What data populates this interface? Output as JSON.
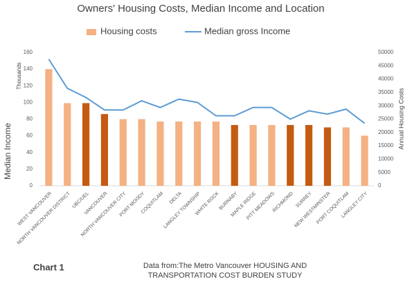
{
  "chart_data": {
    "type": "bar-line",
    "title": "Owners' Housing Costs, Median Income and Location",
    "y_label": "Median Income",
    "y_unit": "Thousands",
    "y2_label": "Annual Housing Costs",
    "caption": "Chart 1",
    "source": "Data from:The Metro Vancouver HOUSING AND TRANSPORTATION COST BURDEN STUDY",
    "categories": [
      "WEST VANCOUVER",
      "NORTH VANCOUVER DISTRICT",
      "UBC/UEL",
      "VANCOUVER",
      "NORTH VANCOUVER CITY",
      "PORT MOODY",
      "COQUITLAM",
      "DELTA",
      "LANGLEY TOWNSHIP",
      "WHITE ROCK",
      "BURNABY",
      "MAPLE RIDGE",
      "PITT MEADOWS",
      "RICHMOND",
      "SURREY",
      "NEW WESTMINSTER",
      "PORT COQUITLAM",
      "LANGLEY CITY"
    ],
    "series": [
      {
        "name": "Housing costs",
        "type": "bar",
        "axis": "y2",
        "color": "#f4b183",
        "colors": [
          "#f4b183",
          "#f4b183",
          "#c55a11",
          "#c55a11",
          "#f4b183",
          "#f4b183",
          "#f4b183",
          "#f4b183",
          "#f4b183",
          "#f4b183",
          "#c55a11",
          "#f4b183",
          "#f4b183",
          "#c55a11",
          "#c55a11",
          "#c55a11",
          "#f4b183",
          "#f4b183"
        ],
        "values": [
          43750,
          31000,
          31000,
          26900,
          25000,
          25000,
          24100,
          24100,
          24100,
          24100,
          22800,
          22800,
          22800,
          22800,
          22800,
          21900,
          21900,
          18800
        ]
      },
      {
        "name": "Median gross Income",
        "type": "line",
        "axis": "y",
        "color": "#5b9bd5",
        "values": [
          152,
          117,
          106,
          91,
          91,
          102,
          94,
          104,
          100,
          84,
          84,
          94,
          94,
          80,
          90,
          86,
          92,
          75
        ]
      }
    ],
    "ylim": [
      0,
      160
    ],
    "yticks": [
      0,
      20,
      40,
      60,
      80,
      100,
      120,
      140,
      160
    ],
    "y2lim": [
      0,
      50000
    ],
    "y2ticks": [
      0,
      5000,
      10000,
      15000,
      20000,
      25000,
      30000,
      35000,
      40000,
      45000,
      50000
    ]
  }
}
